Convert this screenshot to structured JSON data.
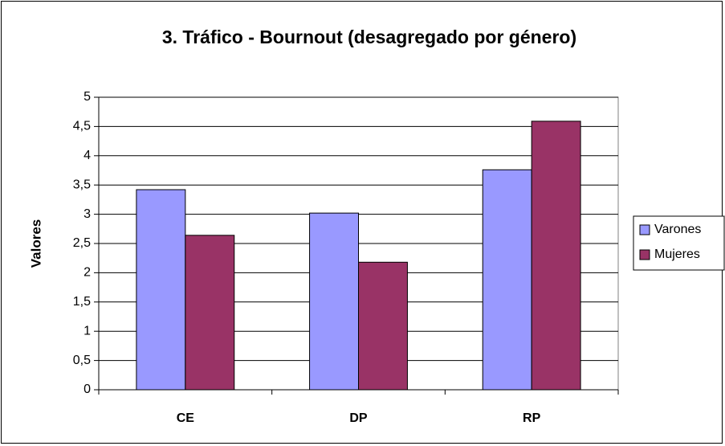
{
  "chart_data": {
    "type": "bar",
    "title": "3. Tráfico - Bournout (desagregado por género)",
    "y_label": "Valores",
    "categories": [
      "CE",
      "DP",
      "RP"
    ],
    "series": [
      {
        "name": "Varones",
        "color": "#9999ff",
        "values": [
          3.42,
          3.02,
          3.76
        ]
      },
      {
        "name": "Mujeres",
        "color": "#993366",
        "values": [
          2.64,
          2.18,
          4.59
        ]
      }
    ],
    "ylim": [
      0,
      5
    ],
    "yticks": [
      0,
      {
        "value": 0.5,
        "label": "0,5"
      },
      1,
      {
        "value": 1.5,
        "label": "1,5"
      },
      2,
      {
        "value": 2.5,
        "label": "2,5"
      },
      3,
      {
        "value": 3.5,
        "label": "3,5"
      },
      4,
      {
        "value": 4.5,
        "label": "4,5"
      },
      5
    ],
    "grid": true,
    "legend": "right"
  }
}
